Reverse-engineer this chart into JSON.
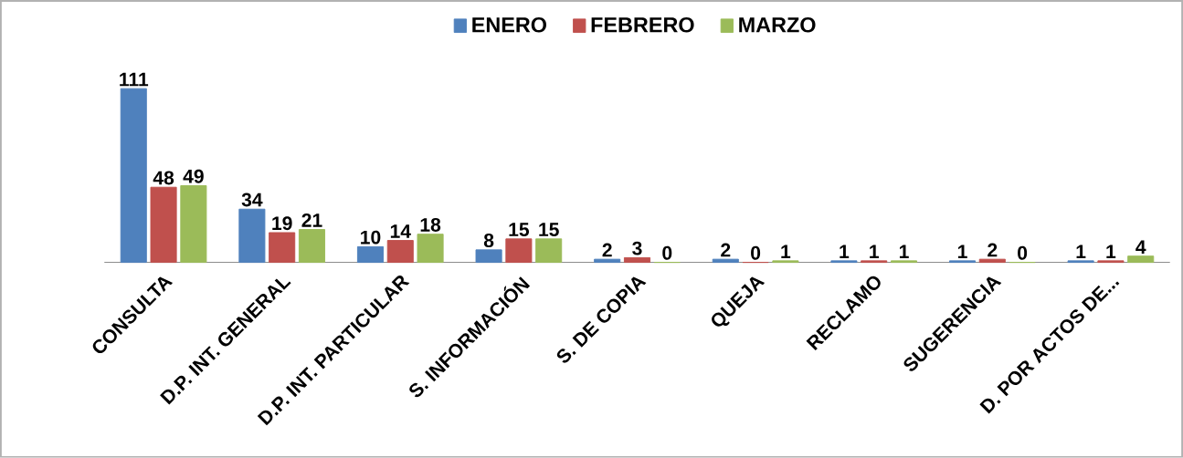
{
  "chart_data": {
    "type": "bar",
    "categories": [
      "CONSULTA",
      "D.P. INT. GENERAL",
      "D.P. INT. PARTICULAR",
      "S. INFORMACIÓN",
      "S. DE COPIA",
      "QUEJA",
      "RECLAMO",
      "SUGERENCIA",
      "D. POR ACTOS DE..."
    ],
    "series": [
      {
        "name": "ENERO",
        "color": "#4f81bd",
        "values": [
          111,
          34,
          10,
          8,
          2,
          2,
          1,
          1,
          1
        ]
      },
      {
        "name": "FEBRERO",
        "color": "#c0504d",
        "values": [
          48,
          19,
          14,
          15,
          3,
          0,
          1,
          2,
          1
        ]
      },
      {
        "name": "MARZO",
        "color": "#9bbb59",
        "values": [
          49,
          21,
          18,
          15,
          0,
          1,
          1,
          0,
          4
        ]
      }
    ],
    "data_labels": true,
    "legend": "top"
  }
}
